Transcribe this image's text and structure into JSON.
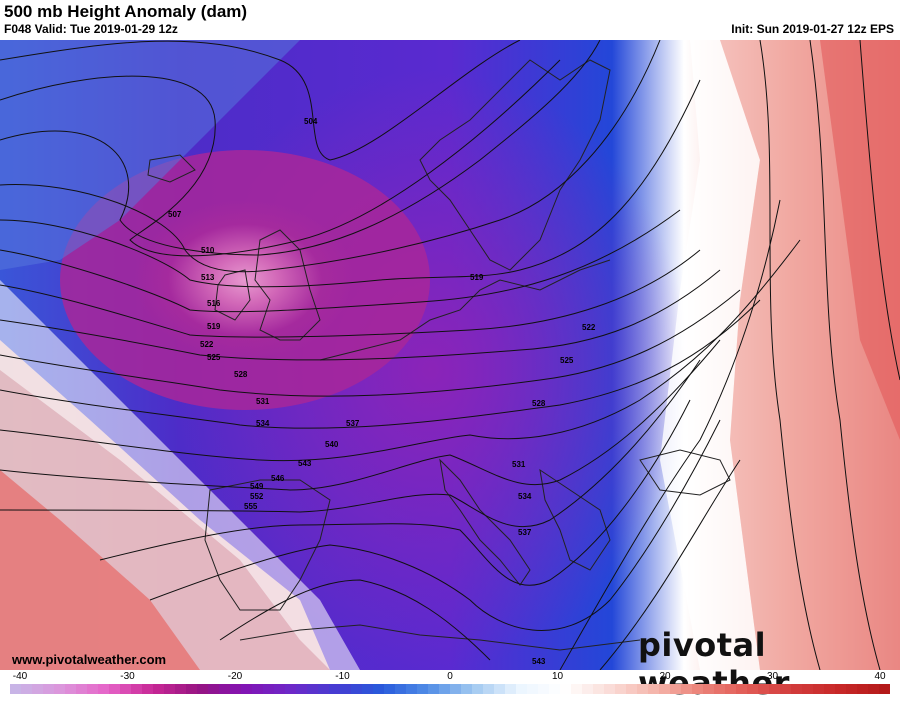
{
  "header": {
    "title": "500 mb Height Anomaly (dam)",
    "valid": "F048 Valid: Tue 2019-01-29 12z",
    "init": "Init: Sun 2019-01-27 12z EPS"
  },
  "footer": {
    "site": "www.pivotalweather.com",
    "brand": "pivotal weather"
  },
  "colorbar": {
    "ticks": [
      "-40",
      "-30",
      "-20",
      "-10",
      "0",
      "10",
      "20",
      "30",
      "40"
    ]
  },
  "contour_labels": [
    "504",
    "507",
    "510",
    "513",
    "516",
    "519",
    "519",
    "522",
    "522",
    "525",
    "525",
    "528",
    "528",
    "531",
    "531",
    "534",
    "534",
    "537",
    "537",
    "540",
    "543",
    "543",
    "546",
    "549",
    "552",
    "555"
  ],
  "colors": {
    "strong_negative": "#c0107a",
    "negative": "#8a1fc9",
    "blue": "#1f3fd8",
    "neutral": "#ffffff",
    "positive": "#e04040"
  }
}
